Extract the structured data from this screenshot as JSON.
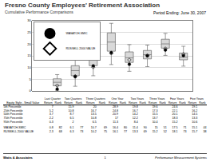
{
  "header": {
    "title": "Fresno County Employees' Retirement Association",
    "subtitle": "Cumulative Performance Comparisons",
    "period": "Period Ending: June 30, 2007"
  },
  "chart_data": {
    "type": "box",
    "categories": [
      "Last Quarter",
      "Two Quarters",
      "Three Quarters",
      "One Year",
      "Two Years",
      "Three Years",
      "Four Years",
      "Five Years"
    ],
    "percentiles": [
      {
        "name": "5th Percentile",
        "values": [
          7.0,
          15.9,
          20.0,
          28.9,
          19.8,
          19.6,
          24.6,
          19.1
        ]
      },
      {
        "name": "25th Percentile",
        "values": [
          5.2,
          10.8,
          16.7,
          24.8,
          16.7,
          17.3,
          22.1,
          16.2
        ]
      },
      {
        "name": "50th Percentile",
        "values": [
          3.7,
          8.7,
          13.5,
          20.9,
          14.2,
          15.5,
          20.1,
          14.5
        ]
      },
      {
        "name": "75th Percentile",
        "values": [
          2.2,
          6.5,
          10.8,
          17.0,
          12.2,
          13.7,
          18.3,
          13.3
        ]
      },
      {
        "name": "95th Percentile",
        "values": [
          0.3,
          2.0,
          6.5,
          11.3,
          8.4,
          10.4,
          15.2,
          10.6
        ]
      }
    ],
    "series": [
      {
        "name": "WASATCH-SMIC",
        "color": "#000000",
        "marker": "circle",
        "values": [
          0.8,
          6.1,
          10.7,
          16.4,
          11.4,
          15.0,
          17.5,
          15.1
        ]
      },
      {
        "name": "RUSSELL 2000 VALUE",
        "color": "#000000",
        "marker": "diamond-open",
        "values": [
          2.3,
          6.3,
          10.2,
          16.1,
          13.3,
          15.2,
          18.1,
          15.7
        ]
      }
    ],
    "color": "#d9d9d9",
    "ylim": [
      0,
      30
    ],
    "yticks": [
      0,
      5,
      10,
      15,
      20,
      25,
      30
    ],
    "grid": true,
    "legend": "top-left",
    "tick_labels": "y"
  },
  "table": {
    "row_header": "Equity Style - Small Value",
    "columns": [
      "Return",
      "Rank"
    ],
    "ranks": [
      [
        82,
        77,
        69,
        80,
        90,
        51,
        71,
        44
      ],
      [
        68,
        73,
        75,
        77,
        69,
        52,
        73,
        38
      ]
    ]
  },
  "footer": {
    "left": "Watts & Associates",
    "center": "1",
    "right": "Performance Measurement Systems"
  }
}
